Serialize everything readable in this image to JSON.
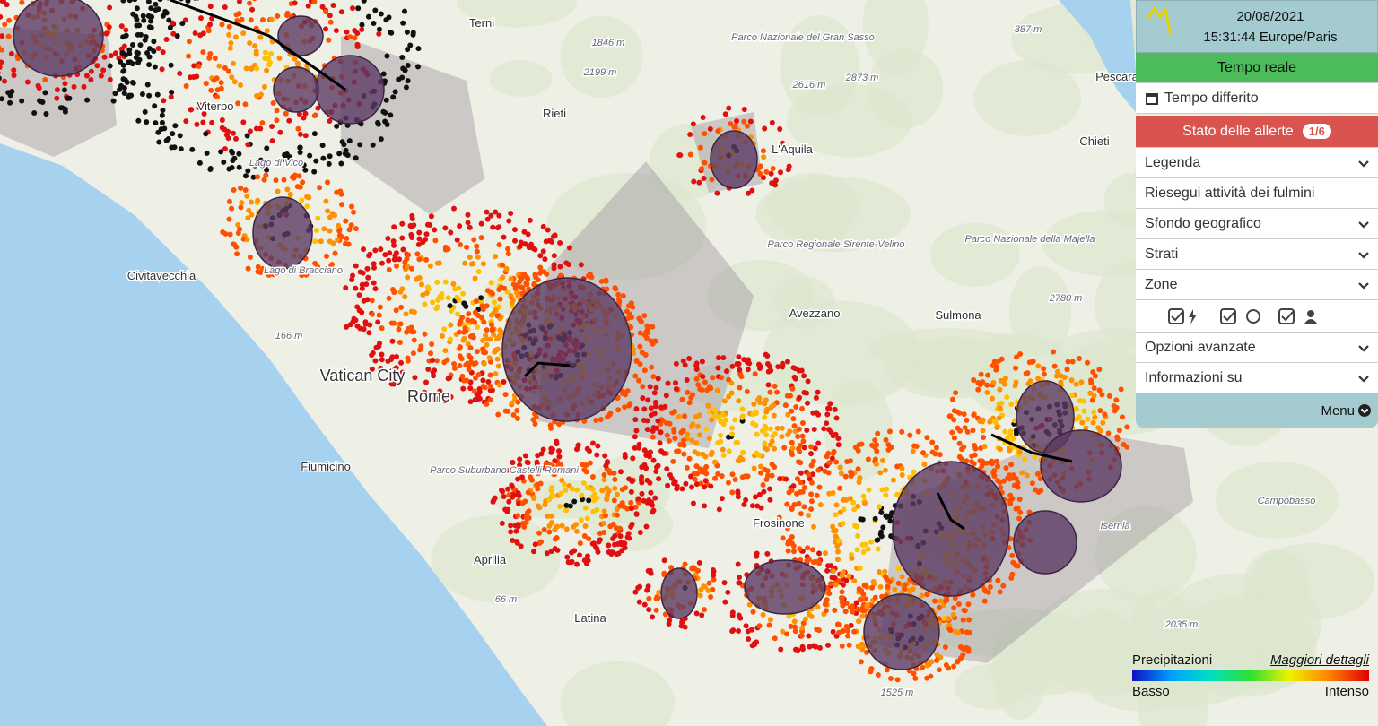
{
  "header": {
    "date": "20/08/2021",
    "time": "15:31:44 Europe/Paris"
  },
  "menu": {
    "realtime": "Tempo reale",
    "deferred": "Tempo differito",
    "alerts": "Stato delle allerte",
    "alerts_count": "1/6",
    "items": [
      "Legenda",
      "Riesegui attività dei fulmini",
      "Sfondo geografico",
      "Strati",
      "Zone"
    ],
    "items_after": [
      "Opzioni avanzate",
      "Informazioni su"
    ],
    "footer": "Menu"
  },
  "legend": {
    "title": "Precipitazioni",
    "link": "Maggiori dettagli",
    "low": "Basso",
    "high": "Intenso"
  },
  "map_labels": [
    "Terni",
    "Viterbo",
    "Lago di Vico",
    "Civitavecchia",
    "Lago di Bracciano",
    "Vatican City",
    "Rome",
    "Fiumicino",
    "Parco Suburbano Castelli Romani",
    "Aprilia",
    "Latina",
    "Frosinone",
    "Avezzano",
    "Sulmona",
    "L'Aquila",
    "Pescara",
    "Chieti",
    "Rieti",
    "Parco Nazionale del Gran Sasso",
    "Parco Regionale Sirente-Velino",
    "Parco Nazionale della Majella",
    "Campobasso",
    "Isernia",
    "1846 m",
    "2199 m",
    "2616 m",
    "2873 m",
    "387 m",
    "166 m",
    "66 m",
    "2780 m",
    "2035 m",
    "1525 m"
  ]
}
